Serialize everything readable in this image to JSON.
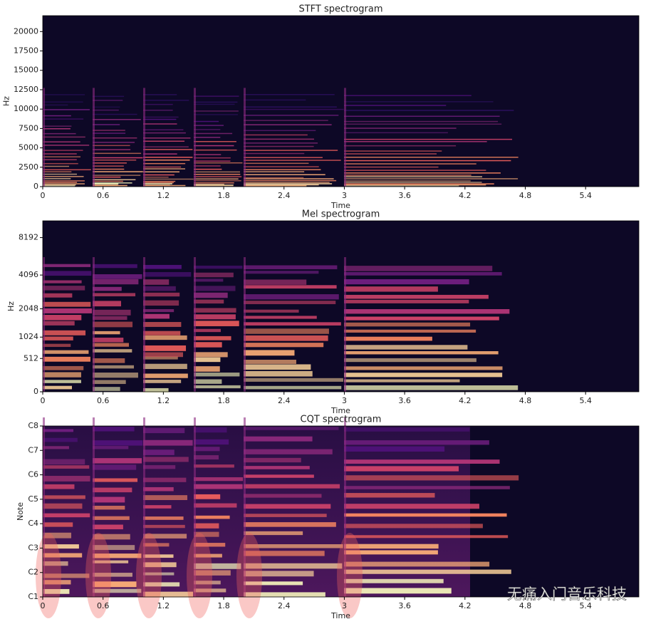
{
  "chart_data": [
    {
      "type": "heatmap",
      "title": "STFT spectrogram",
      "xlabel": "Time",
      "ylabel": "Hz",
      "xlim": [
        0,
        5.93
      ],
      "xticks": [
        0,
        0.6,
        1.2,
        1.8,
        2.4,
        3,
        3.6,
        4.2,
        4.8,
        5.4
      ],
      "ylim": [
        0,
        22050
      ],
      "yticks": [
        0,
        2500,
        5000,
        7500,
        10000,
        12500,
        15000,
        17500,
        20000
      ],
      "yscale": "linear"
    },
    {
      "type": "heatmap",
      "title": "Mel spectrogram",
      "xlabel": "Time",
      "ylabel": "Hz",
      "xlim": [
        0,
        5.93
      ],
      "xticks": [
        0,
        0.6,
        1.2,
        1.8,
        2.4,
        3,
        3.6,
        4.2,
        4.8,
        5.4
      ],
      "ylim": [
        0,
        11025
      ],
      "yticks": [
        0,
        512,
        1024,
        2048,
        4096,
        8192
      ],
      "yscale": "mel"
    },
    {
      "type": "heatmap",
      "title": "CQT spectrogram",
      "xlabel": "Time",
      "ylabel": "Note",
      "xlim": [
        0,
        5.93
      ],
      "xticks": [
        0,
        0.6,
        1.2,
        1.8,
        2.4,
        3,
        3.6,
        4.2,
        4.8,
        5.4
      ],
      "ylim": [
        24,
        108
      ],
      "yticks": [
        {
          "value": 24,
          "label": "C1"
        },
        {
          "value": 36,
          "label": "C2"
        },
        {
          "value": 48,
          "label": "C3"
        },
        {
          "value": 60,
          "label": "C4"
        },
        {
          "value": 72,
          "label": "C5"
        },
        {
          "value": 84,
          "label": "C6"
        },
        {
          "value": 96,
          "label": "C7"
        },
        {
          "value": 108,
          "label": "C8"
        }
      ],
      "yscale": "linear"
    }
  ],
  "watermark": "无痛入门音乐科技"
}
